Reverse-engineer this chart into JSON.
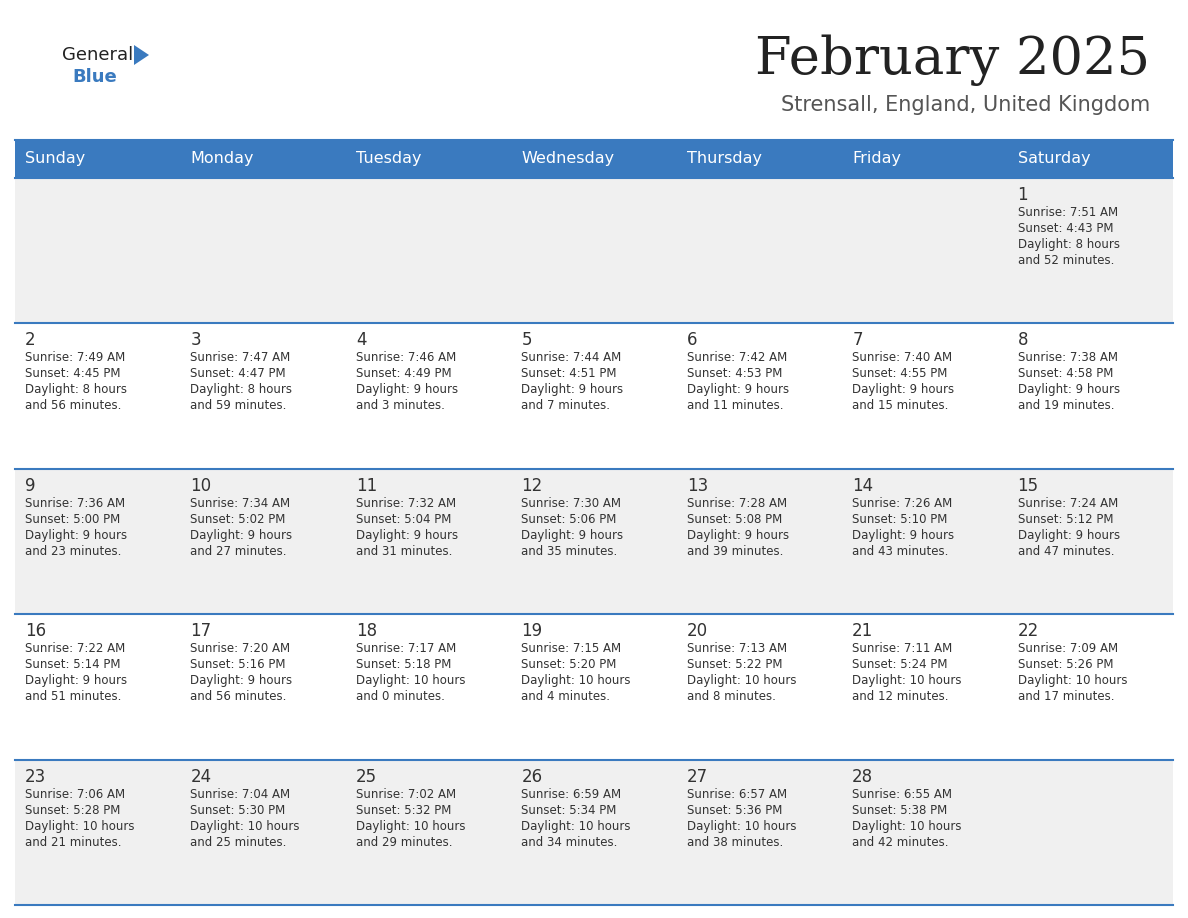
{
  "title": "February 2025",
  "subtitle": "Strensall, England, United Kingdom",
  "days_of_week": [
    "Sunday",
    "Monday",
    "Tuesday",
    "Wednesday",
    "Thursday",
    "Friday",
    "Saturday"
  ],
  "header_bg": "#3a7abf",
  "header_text": "#ffffff",
  "cell_bg": "#f0f0f0",
  "separator_color": "#3a7abf",
  "separator_light": "#c0c0c0",
  "text_color": "#333333",
  "title_color": "#222222",
  "subtitle_color": "#555555",
  "logo_general_color": "#222222",
  "logo_blue_color": "#3a7abf",
  "calendar_data": [
    [
      {
        "day": null,
        "sunrise": null,
        "sunset": null,
        "daylight": null
      },
      {
        "day": null,
        "sunrise": null,
        "sunset": null,
        "daylight": null
      },
      {
        "day": null,
        "sunrise": null,
        "sunset": null,
        "daylight": null
      },
      {
        "day": null,
        "sunrise": null,
        "sunset": null,
        "daylight": null
      },
      {
        "day": null,
        "sunrise": null,
        "sunset": null,
        "daylight": null
      },
      {
        "day": null,
        "sunrise": null,
        "sunset": null,
        "daylight": null
      },
      {
        "day": 1,
        "sunrise": "7:51 AM",
        "sunset": "4:43 PM",
        "daylight": "8 hours\nand 52 minutes."
      }
    ],
    [
      {
        "day": 2,
        "sunrise": "7:49 AM",
        "sunset": "4:45 PM",
        "daylight": "8 hours\nand 56 minutes."
      },
      {
        "day": 3,
        "sunrise": "7:47 AM",
        "sunset": "4:47 PM",
        "daylight": "8 hours\nand 59 minutes."
      },
      {
        "day": 4,
        "sunrise": "7:46 AM",
        "sunset": "4:49 PM",
        "daylight": "9 hours\nand 3 minutes."
      },
      {
        "day": 5,
        "sunrise": "7:44 AM",
        "sunset": "4:51 PM",
        "daylight": "9 hours\nand 7 minutes."
      },
      {
        "day": 6,
        "sunrise": "7:42 AM",
        "sunset": "4:53 PM",
        "daylight": "9 hours\nand 11 minutes."
      },
      {
        "day": 7,
        "sunrise": "7:40 AM",
        "sunset": "4:55 PM",
        "daylight": "9 hours\nand 15 minutes."
      },
      {
        "day": 8,
        "sunrise": "7:38 AM",
        "sunset": "4:58 PM",
        "daylight": "9 hours\nand 19 minutes."
      }
    ],
    [
      {
        "day": 9,
        "sunrise": "7:36 AM",
        "sunset": "5:00 PM",
        "daylight": "9 hours\nand 23 minutes."
      },
      {
        "day": 10,
        "sunrise": "7:34 AM",
        "sunset": "5:02 PM",
        "daylight": "9 hours\nand 27 minutes."
      },
      {
        "day": 11,
        "sunrise": "7:32 AM",
        "sunset": "5:04 PM",
        "daylight": "9 hours\nand 31 minutes."
      },
      {
        "day": 12,
        "sunrise": "7:30 AM",
        "sunset": "5:06 PM",
        "daylight": "9 hours\nand 35 minutes."
      },
      {
        "day": 13,
        "sunrise": "7:28 AM",
        "sunset": "5:08 PM",
        "daylight": "9 hours\nand 39 minutes."
      },
      {
        "day": 14,
        "sunrise": "7:26 AM",
        "sunset": "5:10 PM",
        "daylight": "9 hours\nand 43 minutes."
      },
      {
        "day": 15,
        "sunrise": "7:24 AM",
        "sunset": "5:12 PM",
        "daylight": "9 hours\nand 47 minutes."
      }
    ],
    [
      {
        "day": 16,
        "sunrise": "7:22 AM",
        "sunset": "5:14 PM",
        "daylight": "9 hours\nand 51 minutes."
      },
      {
        "day": 17,
        "sunrise": "7:20 AM",
        "sunset": "5:16 PM",
        "daylight": "9 hours\nand 56 minutes."
      },
      {
        "day": 18,
        "sunrise": "7:17 AM",
        "sunset": "5:18 PM",
        "daylight": "10 hours\nand 0 minutes."
      },
      {
        "day": 19,
        "sunrise": "7:15 AM",
        "sunset": "5:20 PM",
        "daylight": "10 hours\nand 4 minutes."
      },
      {
        "day": 20,
        "sunrise": "7:13 AM",
        "sunset": "5:22 PM",
        "daylight": "10 hours\nand 8 minutes."
      },
      {
        "day": 21,
        "sunrise": "7:11 AM",
        "sunset": "5:24 PM",
        "daylight": "10 hours\nand 12 minutes."
      },
      {
        "day": 22,
        "sunrise": "7:09 AM",
        "sunset": "5:26 PM",
        "daylight": "10 hours\nand 17 minutes."
      }
    ],
    [
      {
        "day": 23,
        "sunrise": "7:06 AM",
        "sunset": "5:28 PM",
        "daylight": "10 hours\nand 21 minutes."
      },
      {
        "day": 24,
        "sunrise": "7:04 AM",
        "sunset": "5:30 PM",
        "daylight": "10 hours\nand 25 minutes."
      },
      {
        "day": 25,
        "sunrise": "7:02 AM",
        "sunset": "5:32 PM",
        "daylight": "10 hours\nand 29 minutes."
      },
      {
        "day": 26,
        "sunrise": "6:59 AM",
        "sunset": "5:34 PM",
        "daylight": "10 hours\nand 34 minutes."
      },
      {
        "day": 27,
        "sunrise": "6:57 AM",
        "sunset": "5:36 PM",
        "daylight": "10 hours\nand 38 minutes."
      },
      {
        "day": 28,
        "sunrise": "6:55 AM",
        "sunset": "5:38 PM",
        "daylight": "10 hours\nand 42 minutes."
      },
      {
        "day": null,
        "sunrise": null,
        "sunset": null,
        "daylight": null
      }
    ]
  ]
}
